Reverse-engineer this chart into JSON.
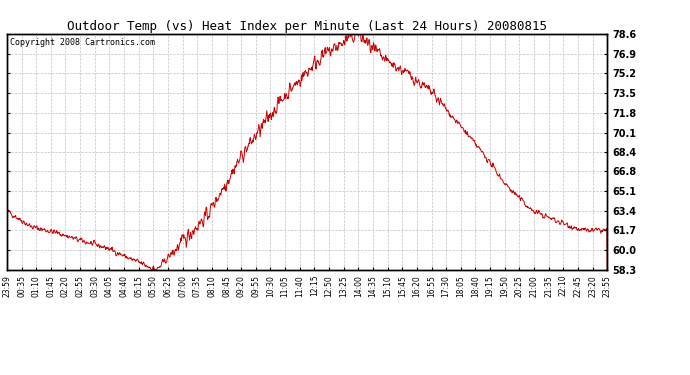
{
  "title": "Outdoor Temp (vs) Heat Index per Minute (Last 24 Hours) 20080815",
  "copyright": "Copyright 2008 Cartronics.com",
  "line_color": "#cc0000",
  "background_color": "#ffffff",
  "grid_color": "#bbbbbb",
  "yticks": [
    58.3,
    60.0,
    61.7,
    63.4,
    65.1,
    66.8,
    68.4,
    70.1,
    71.8,
    73.5,
    75.2,
    76.9,
    78.6
  ],
  "ymin": 58.3,
  "ymax": 78.6,
  "xtick_labels": [
    "23:59",
    "00:35",
    "01:10",
    "01:45",
    "02:20",
    "02:55",
    "03:30",
    "04:05",
    "04:40",
    "05:15",
    "05:50",
    "06:25",
    "07:00",
    "07:35",
    "08:10",
    "08:45",
    "09:20",
    "09:55",
    "10:30",
    "11:05",
    "11:40",
    "12:15",
    "12:50",
    "13:25",
    "14:00",
    "14:35",
    "15:10",
    "15:45",
    "16:20",
    "16:55",
    "17:30",
    "18:05",
    "18:40",
    "19:15",
    "19:50",
    "20:25",
    "21:00",
    "21:35",
    "22:10",
    "22:45",
    "23:20",
    "23:55"
  ]
}
